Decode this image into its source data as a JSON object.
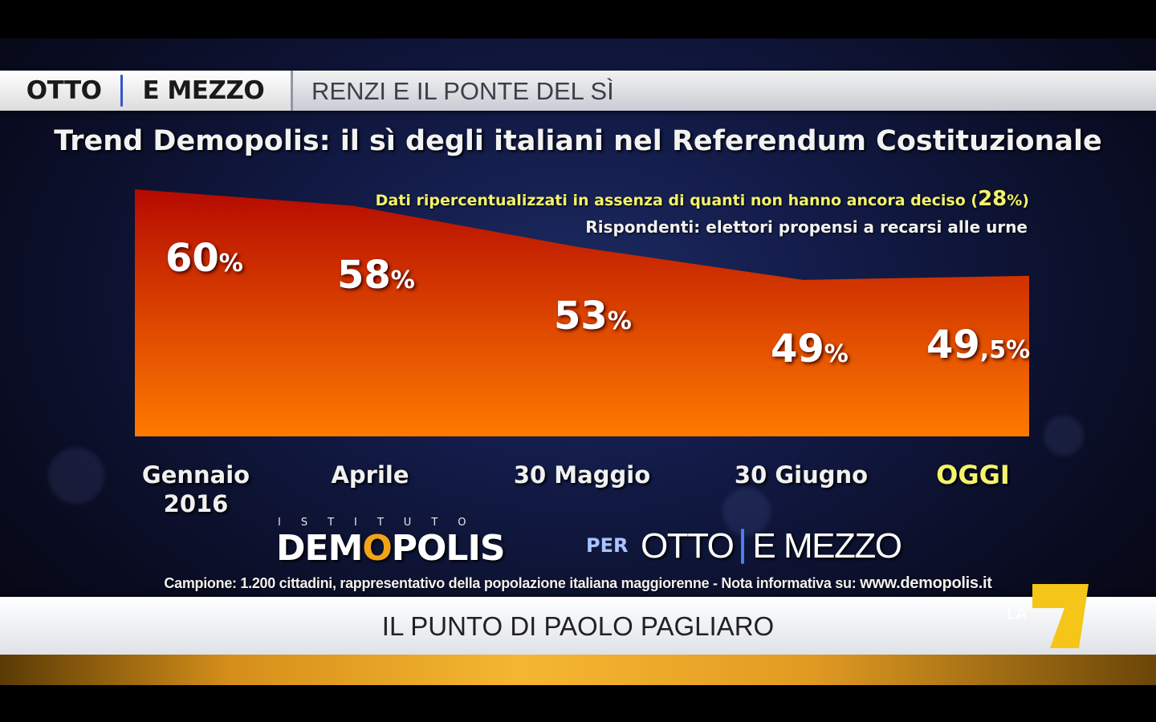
{
  "header": {
    "program_word1": "OTTO",
    "program_word2": "E MEZZO",
    "segment_title": "RENZI E IL PONTE DEL SÌ"
  },
  "chart_data": {
    "type": "area",
    "title": "Trend Demopolis: il sì degli italiani nel Referendum Costituzionale",
    "notes": {
      "recalc_text": "Dati ripercentualizzati in assenza di quanti non hanno ancora deciso (",
      "recalc_value": "28",
      "recalc_suffix": "%)",
      "respondents": "Rispondenti: elettori propensi a recarsi alle urne"
    },
    "categories": [
      "Gennaio 2016",
      "Aprile",
      "30 Maggio",
      "30 Giugno",
      "OGGI"
    ],
    "values": [
      60,
      58,
      53,
      49,
      49.5
    ],
    "data_labels": [
      {
        "num": "60",
        "pct": "%"
      },
      {
        "num": "58",
        "pct": "%"
      },
      {
        "num": "53",
        "pct": "%"
      },
      {
        "num": "49",
        "pct": "%"
      },
      {
        "num": "49",
        "pct": ",5%"
      }
    ],
    "x_labels": [
      {
        "line1": "Gennaio",
        "line2": "2016"
      },
      {
        "line1": "Aprile",
        "line2": ""
      },
      {
        "line1": "30 Maggio",
        "line2": ""
      },
      {
        "line1": "30 Giugno",
        "line2": ""
      },
      {
        "line1": "OGGI",
        "line2": ""
      }
    ],
    "highlight_category": "OGGI",
    "colors": {
      "area_top": "#b50a00",
      "area_bottom": "#ff7a00",
      "highlight_text": "#f4f36b"
    }
  },
  "branding": {
    "institute_small": "ISTITUTO",
    "institute_logo": "DEMOPOLIS",
    "per": "PER",
    "partner_word1": "OTTO",
    "partner_word2": "E MEZZO",
    "footnote": "Campione: 1.200 cittadini, rappresentativo della popolazione italiana maggiorenne - Nota informativa su: ",
    "footnote_url": "www.demopolis.it"
  },
  "lower_third": {
    "text": "IL PUNTO DI PAOLO PAGLIARO"
  },
  "channel": {
    "la": "LA",
    "number": "7"
  }
}
